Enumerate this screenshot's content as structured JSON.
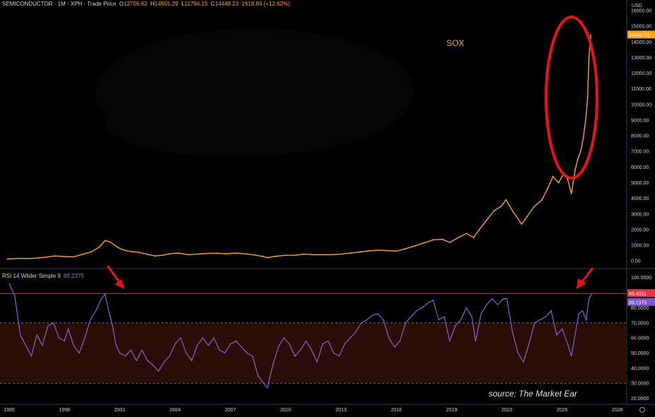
{
  "header": {
    "symbol": "SEMICONDUCTOR · 1M · XPH · Trade Price",
    "o_label": "O",
    "o_value": "12706.62",
    "h_label": "H",
    "h_value": "14655.29",
    "l_label": "L",
    "l_value": "11794.15",
    "c_label": "C",
    "c_value": "14448.23",
    "change": "1618.84 (+12.62%)"
  },
  "currency": "USD",
  "series_label": "SOX",
  "rsi_header": {
    "label": "RSI 14 Wilder Simple 9",
    "value": "89.2375"
  },
  "source": "source: The Market Ear",
  "colors": {
    "price": "#f7a229",
    "rsi": "#8a5fd0",
    "overbought_line": "#e03a4a",
    "band": "#2a0e05",
    "circle": "#e8141c",
    "arrow": "#e8141c"
  },
  "chart_data": [
    {
      "type": "line",
      "title": "SOX",
      "xlabel": "",
      "ylabel": "USD",
      "x_ticks": [
        "1995",
        "1998",
        "2001",
        "2004",
        "2007",
        "2010",
        "2013",
        "2016",
        "2019",
        "2022",
        "2025",
        "2028"
      ],
      "y_ticks": [
        "0.00",
        "1000.00",
        "2000.00",
        "3000.00",
        "4000.00",
        "5000.00",
        "6000.00",
        "7000.00",
        "8000.00",
        "9000.00",
        "10000.00",
        "11000.00",
        "12000.00",
        "13000.00",
        "14000.00",
        "15000.00",
        "16000.00"
      ],
      "xlim": [
        1994.5,
        2028.5
      ],
      "ylim": [
        -400,
        16500
      ],
      "last_value_label": "14448.23",
      "series": [
        {
          "values": [
            [
              1994.9,
              120
            ],
            [
              1995.5,
              160
            ],
            [
              1996.0,
              150
            ],
            [
              1996.5,
              180
            ],
            [
              1997.0,
              240
            ],
            [
              1997.5,
              320
            ],
            [
              1998.0,
              280
            ],
            [
              1998.5,
              260
            ],
            [
              1999.0,
              430
            ],
            [
              1999.5,
              600
            ],
            [
              1999.9,
              900
            ],
            [
              2000.2,
              1300
            ],
            [
              2000.5,
              1200
            ],
            [
              2000.9,
              850
            ],
            [
              2001.2,
              700
            ],
            [
              2001.6,
              600
            ],
            [
              2002.0,
              560
            ],
            [
              2002.5,
              420
            ],
            [
              2002.9,
              320
            ],
            [
              2003.3,
              360
            ],
            [
              2003.8,
              470
            ],
            [
              2004.2,
              500
            ],
            [
              2004.7,
              400
            ],
            [
              2005.2,
              430
            ],
            [
              2005.8,
              480
            ],
            [
              2006.3,
              490
            ],
            [
              2006.8,
              460
            ],
            [
              2007.3,
              500
            ],
            [
              2007.8,
              450
            ],
            [
              2008.3,
              380
            ],
            [
              2008.8,
              280
            ],
            [
              2009.0,
              210
            ],
            [
              2009.5,
              300
            ],
            [
              2010.0,
              360
            ],
            [
              2010.5,
              360
            ],
            [
              2011.0,
              440
            ],
            [
              2011.5,
              400
            ],
            [
              2012.0,
              400
            ],
            [
              2012.5,
              400
            ],
            [
              2013.0,
              430
            ],
            [
              2013.5,
              500
            ],
            [
              2014.0,
              570
            ],
            [
              2014.5,
              640
            ],
            [
              2015.0,
              690
            ],
            [
              2015.5,
              660
            ],
            [
              2016.0,
              620
            ],
            [
              2016.5,
              780
            ],
            [
              2017.0,
              960
            ],
            [
              2017.5,
              1150
            ],
            [
              2018.0,
              1350
            ],
            [
              2018.5,
              1380
            ],
            [
              2018.9,
              1180
            ],
            [
              2019.3,
              1450
            ],
            [
              2019.8,
              1750
            ],
            [
              2020.2,
              1500
            ],
            [
              2020.5,
              2000
            ],
            [
              2020.9,
              2600
            ],
            [
              2021.3,
              3200
            ],
            [
              2021.7,
              3500
            ],
            [
              2021.95,
              3900
            ],
            [
              2022.3,
              3200
            ],
            [
              2022.6,
              2700
            ],
            [
              2022.8,
              2350
            ],
            [
              2023.1,
              2850
            ],
            [
              2023.5,
              3500
            ],
            [
              2023.9,
              3900
            ],
            [
              2024.2,
              4600
            ],
            [
              2024.5,
              5400
            ],
            [
              2024.8,
              5000
            ],
            [
              2025.1,
              5600
            ],
            [
              2025.3,
              5200
            ],
            [
              2025.5,
              4300
            ],
            [
              2025.7,
              5800
            ],
            [
              2025.85,
              6500
            ],
            [
              2026.0,
              7000
            ],
            [
              2026.15,
              7900
            ],
            [
              2026.3,
              9300
            ],
            [
              2026.38,
              10500
            ],
            [
              2026.45,
              13000
            ],
            [
              2026.55,
              14448
            ]
          ]
        }
      ]
    },
    {
      "type": "line",
      "title": "RSI 14 Wilder Simple 9",
      "xlabel": "",
      "ylabel": "",
      "y_ticks": [
        "20.0000",
        "30.0000",
        "40.0000",
        "50.0000",
        "60.0000",
        "70.0000",
        "80.0000",
        "90.0000",
        "100.0000"
      ],
      "xlim": [
        1994.5,
        2028.5
      ],
      "ylim": [
        17,
        105
      ],
      "reference_lines": [
        30,
        70
      ],
      "overbought_value": "89.4311",
      "last_value_label": "89.2375",
      "series": [
        {
          "values": [
            [
              1995.0,
              96
            ],
            [
              1995.3,
              88
            ],
            [
              1995.6,
              62
            ],
            [
              1995.9,
              55
            ],
            [
              1996.2,
              48
            ],
            [
              1996.5,
              62
            ],
            [
              1996.8,
              55
            ],
            [
              1997.1,
              68
            ],
            [
              1997.4,
              70
            ],
            [
              1997.7,
              60
            ],
            [
              1998.0,
              58
            ],
            [
              1998.2,
              66
            ],
            [
              1998.5,
              55
            ],
            [
              1998.8,
              50
            ],
            [
              1999.1,
              60
            ],
            [
              1999.4,
              72
            ],
            [
              1999.7,
              78
            ],
            [
              2000.0,
              86
            ],
            [
              2000.2,
              89
            ],
            [
              2000.4,
              78
            ],
            [
              2000.6,
              68
            ],
            [
              2000.8,
              55
            ],
            [
              2001.0,
              50
            ],
            [
              2001.3,
              48
            ],
            [
              2001.6,
              52
            ],
            [
              2001.9,
              45
            ],
            [
              2002.2,
              52
            ],
            [
              2002.5,
              45
            ],
            [
              2002.8,
              42
            ],
            [
              2003.1,
              38
            ],
            [
              2003.4,
              44
            ],
            [
              2003.7,
              48
            ],
            [
              2004.0,
              56
            ],
            [
              2004.3,
              60
            ],
            [
              2004.6,
              50
            ],
            [
              2004.9,
              45
            ],
            [
              2005.2,
              55
            ],
            [
              2005.5,
              60
            ],
            [
              2005.8,
              55
            ],
            [
              2006.1,
              60
            ],
            [
              2006.4,
              52
            ],
            [
              2006.7,
              50
            ],
            [
              2007.0,
              56
            ],
            [
              2007.3,
              58
            ],
            [
              2007.6,
              54
            ],
            [
              2007.9,
              50
            ],
            [
              2008.2,
              48
            ],
            [
              2008.5,
              35
            ],
            [
              2008.8,
              30
            ],
            [
              2009.0,
              27
            ],
            [
              2009.3,
              42
            ],
            [
              2009.6,
              54
            ],
            [
              2009.9,
              60
            ],
            [
              2010.2,
              56
            ],
            [
              2010.5,
              48
            ],
            [
              2010.8,
              52
            ],
            [
              2011.1,
              58
            ],
            [
              2011.4,
              52
            ],
            [
              2011.7,
              44
            ],
            [
              2012.0,
              56
            ],
            [
              2012.3,
              58
            ],
            [
              2012.6,
              50
            ],
            [
              2012.9,
              48
            ],
            [
              2013.2,
              56
            ],
            [
              2013.5,
              60
            ],
            [
              2013.8,
              64
            ],
            [
              2014.1,
              70
            ],
            [
              2014.4,
              72
            ],
            [
              2014.7,
              75
            ],
            [
              2015.0,
              76
            ],
            [
              2015.3,
              72
            ],
            [
              2015.6,
              60
            ],
            [
              2015.9,
              54
            ],
            [
              2016.2,
              58
            ],
            [
              2016.5,
              70
            ],
            [
              2016.8,
              74
            ],
            [
              2017.1,
              78
            ],
            [
              2017.4,
              80
            ],
            [
              2017.7,
              83
            ],
            [
              2018.0,
              85
            ],
            [
              2018.3,
              72
            ],
            [
              2018.6,
              74
            ],
            [
              2018.9,
              58
            ],
            [
              2019.2,
              68
            ],
            [
              2019.5,
              72
            ],
            [
              2019.8,
              80
            ],
            [
              2020.1,
              74
            ],
            [
              2020.3,
              58
            ],
            [
              2020.6,
              76
            ],
            [
              2020.9,
              82
            ],
            [
              2021.2,
              86
            ],
            [
              2021.5,
              82
            ],
            [
              2021.8,
              86
            ],
            [
              2022.0,
              86
            ],
            [
              2022.3,
              64
            ],
            [
              2022.6,
              50
            ],
            [
              2022.9,
              44
            ],
            [
              2023.2,
              56
            ],
            [
              2023.5,
              70
            ],
            [
              2023.8,
              72
            ],
            [
              2024.1,
              74
            ],
            [
              2024.4,
              78
            ],
            [
              2024.7,
              62
            ],
            [
              2025.0,
              66
            ],
            [
              2025.3,
              56
            ],
            [
              2025.5,
              48
            ],
            [
              2025.7,
              62
            ],
            [
              2025.9,
              76
            ],
            [
              2026.1,
              78
            ],
            [
              2026.3,
              72
            ],
            [
              2026.45,
              86
            ],
            [
              2026.6,
              89.2
            ]
          ]
        }
      ]
    }
  ]
}
